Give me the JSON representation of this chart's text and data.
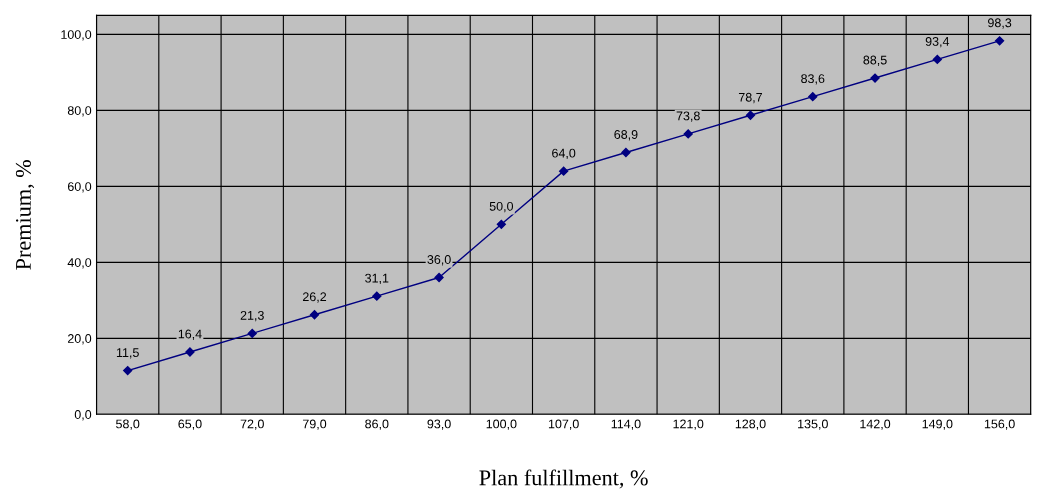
{
  "chart_data": {
    "type": "line",
    "xlabel": "Plan fulfillment, %",
    "ylabel": "Premium, %",
    "categories": [
      "58,0",
      "65,0",
      "72,0",
      "79,0",
      "86,0",
      "93,0",
      "100,0",
      "107,0",
      "114,0",
      "121,0",
      "128,0",
      "135,0",
      "142,0",
      "149,0",
      "156,0"
    ],
    "series": [
      {
        "color": "#000080",
        "values": [
          11.5,
          16.4,
          21.3,
          26.2,
          31.1,
          36.0,
          50.0,
          64.0,
          68.9,
          73.8,
          78.7,
          83.6,
          88.5,
          93.4,
          98.3
        ],
        "value_labels": [
          "11,5",
          "16,4",
          "21,3",
          "26,2",
          "31,1",
          "36,0",
          "50,0",
          "64,0",
          "68,9",
          "73,8",
          "78,7",
          "83,6",
          "88,5",
          "93,4",
          "98,3"
        ]
      }
    ],
    "ylim": [
      0,
      105
    ],
    "yticks": [
      {
        "value": 0,
        "label": "0,0"
      },
      {
        "value": 20,
        "label": "20,0"
      },
      {
        "value": 40,
        "label": "40,0"
      },
      {
        "value": 60,
        "label": "60,0"
      },
      {
        "value": 80,
        "label": "80,0"
      },
      {
        "value": 100,
        "label": "100,0"
      }
    ],
    "grid": true,
    "marker": "diamond",
    "line_style": "solid",
    "legend": false
  }
}
